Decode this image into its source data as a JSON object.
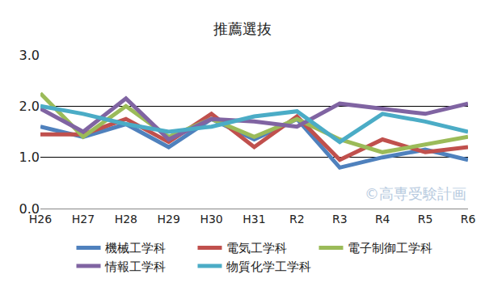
{
  "chart_data": {
    "type": "line",
    "title": "推薦選抜",
    "categories": [
      "H26",
      "H27",
      "H28",
      "H29",
      "H30",
      "H31",
      "R2",
      "R3",
      "R4",
      "R5",
      "R6"
    ],
    "series": [
      {
        "name": "機械工学科",
        "color": "#4f81bd",
        "values": [
          1.6,
          1.4,
          1.65,
          1.2,
          1.75,
          1.35,
          1.75,
          0.8,
          1.0,
          1.15,
          0.95
        ]
      },
      {
        "name": "電気工学科",
        "color": "#c0504d",
        "values": [
          1.45,
          1.45,
          1.75,
          1.3,
          1.85,
          1.2,
          1.8,
          0.95,
          1.35,
          1.1,
          1.2
        ]
      },
      {
        "name": "電子制御工学科",
        "color": "#9bbb59",
        "values": [
          2.25,
          1.4,
          2.0,
          1.4,
          1.75,
          1.4,
          1.75,
          1.35,
          1.1,
          1.25,
          1.4
        ]
      },
      {
        "name": "情報工学科",
        "color": "#8064a2",
        "values": [
          1.95,
          1.5,
          2.15,
          1.35,
          1.75,
          1.7,
          1.6,
          2.05,
          1.95,
          1.85,
          2.05
        ]
      },
      {
        "name": "物質化学工学科",
        "color": "#4bacc6",
        "values": [
          2.0,
          1.85,
          1.65,
          1.5,
          1.6,
          1.8,
          1.9,
          1.3,
          1.85,
          1.7,
          1.5
        ]
      }
    ],
    "ylim": [
      0,
      3
    ],
    "yticks": [
      {
        "value": 0,
        "label": "0.0"
      },
      {
        "value": 1,
        "label": "1.0"
      },
      {
        "value": 2,
        "label": "2.0"
      },
      {
        "value": 3,
        "label": "3.0"
      }
    ],
    "grid": true,
    "legend": "bottom",
    "annotations": [
      {
        "text": "©高専受験計画"
      }
    ]
  }
}
